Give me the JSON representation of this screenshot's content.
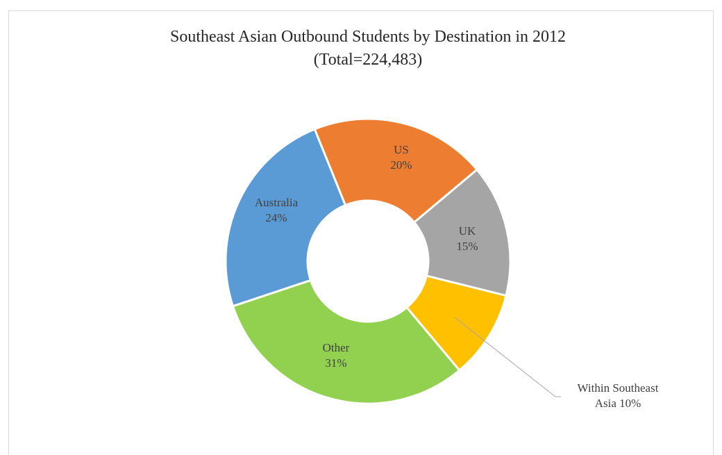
{
  "chart_data": {
    "type": "pie",
    "subtype": "donut",
    "title": "Southeast Asian Outbound Students by Destination in 2012",
    "subtitle": "(Total=224,483)",
    "slices": [
      {
        "name": "US",
        "value": 20,
        "label_lines": [
          "US",
          "20%"
        ],
        "color": "#ed7d31"
      },
      {
        "name": "UK",
        "value": 15,
        "label_lines": [
          "UK",
          "15%"
        ],
        "color": "#a5a5a5"
      },
      {
        "name": "Within Southeast Asia",
        "value": 10,
        "label_lines": [
          "Within Southeast",
          "Asia 10%"
        ],
        "color": "#ffc000"
      },
      {
        "name": "Other",
        "value": 31,
        "label_lines": [
          "Other",
          "31%"
        ],
        "color": "#92d050"
      },
      {
        "name": "Australia",
        "value": 24,
        "label_lines": [
          "Australia",
          "24%"
        ],
        "color": "#5b9bd5"
      }
    ],
    "legend": "none"
  }
}
